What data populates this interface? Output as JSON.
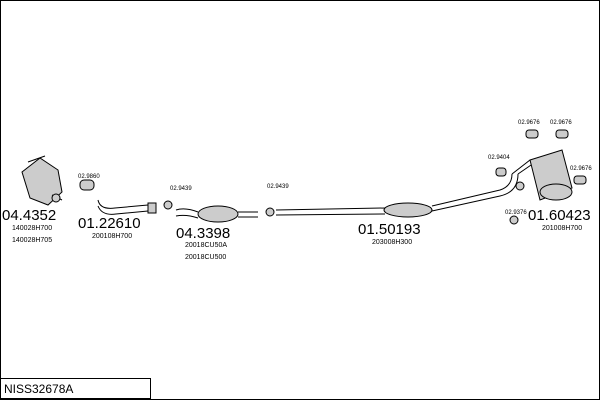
{
  "parts": [
    {
      "number": "04.4352",
      "codes": [
        "140028H700",
        "140028H705"
      ]
    },
    {
      "number": "01.22610",
      "codes": [
        "200108H700"
      ]
    },
    {
      "number": "04.3398",
      "codes": [
        "20018CU50A",
        "20018CU500"
      ]
    },
    {
      "number": "01.50193",
      "codes": [
        "203008H300"
      ]
    },
    {
      "number": "01.60423",
      "codes": [
        "201008H700"
      ]
    }
  ],
  "fittings": [
    {
      "label": "02.9860"
    },
    {
      "label": "02.9439"
    },
    {
      "label": "02.9439"
    },
    {
      "label": "02.9404"
    },
    {
      "label": "02.9376"
    },
    {
      "label": "02.9676"
    },
    {
      "label": "02.9676"
    },
    {
      "label": "02.9676"
    }
  ],
  "footer": {
    "code": "NISS32678A"
  }
}
